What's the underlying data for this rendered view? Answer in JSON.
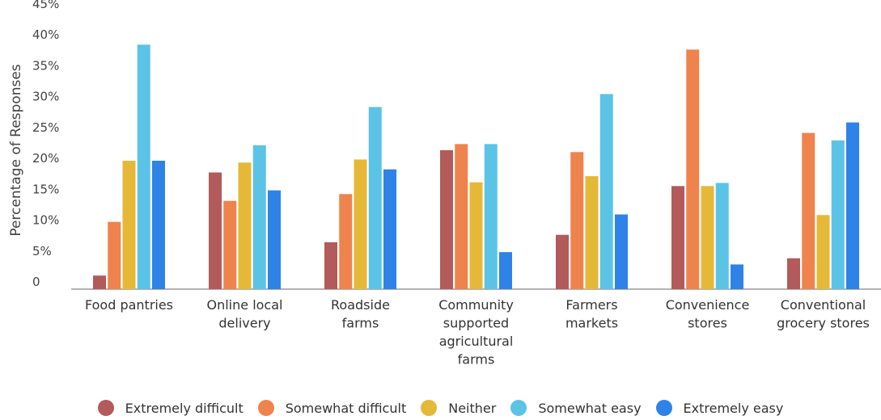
{
  "chart_data": {
    "type": "bar",
    "title": "",
    "xlabel": "",
    "ylabel": "Percentage of Responses",
    "ylim": [
      0,
      45
    ],
    "yticks": [
      "0",
      "5%",
      "10%",
      "15%",
      "20%",
      "25%",
      "30%",
      "35%",
      "40%",
      "45%"
    ],
    "grid": false,
    "legend_position": "bottom",
    "categories": [
      [
        "Food pantries"
      ],
      [
        "Online local",
        "delivery"
      ],
      [
        "Roadside",
        "farms"
      ],
      [
        "Community",
        "supported",
        "agricultural",
        "farms"
      ],
      [
        "Farmers",
        "markets"
      ],
      [
        "Convenience",
        "stores"
      ],
      [
        "Conventional",
        "grocery stores"
      ]
    ],
    "series": [
      {
        "name": "Extremely difficult",
        "color": "#b35a5a",
        "values": [
          2.2,
          18.9,
          7.6,
          22.5,
          8.8,
          16.7,
          5.0
        ]
      },
      {
        "name": "Somewhat difficult",
        "color": "#ef834e",
        "values": [
          10.9,
          14.3,
          15.4,
          23.5,
          22.2,
          38.8,
          25.3
        ]
      },
      {
        "name": "Neither",
        "color": "#e5b838",
        "values": [
          20.8,
          20.5,
          21.0,
          17.3,
          18.3,
          16.7,
          12.0
        ]
      },
      {
        "name": "Somewhat easy",
        "color": "#5bc4e6",
        "values": [
          39.6,
          23.3,
          29.5,
          23.5,
          31.6,
          17.2,
          24.1
        ]
      },
      {
        "name": "Extremely easy",
        "color": "#2f82e6",
        "values": [
          20.8,
          16.0,
          19.4,
          6.0,
          12.1,
          4.0,
          27.0
        ]
      }
    ]
  }
}
